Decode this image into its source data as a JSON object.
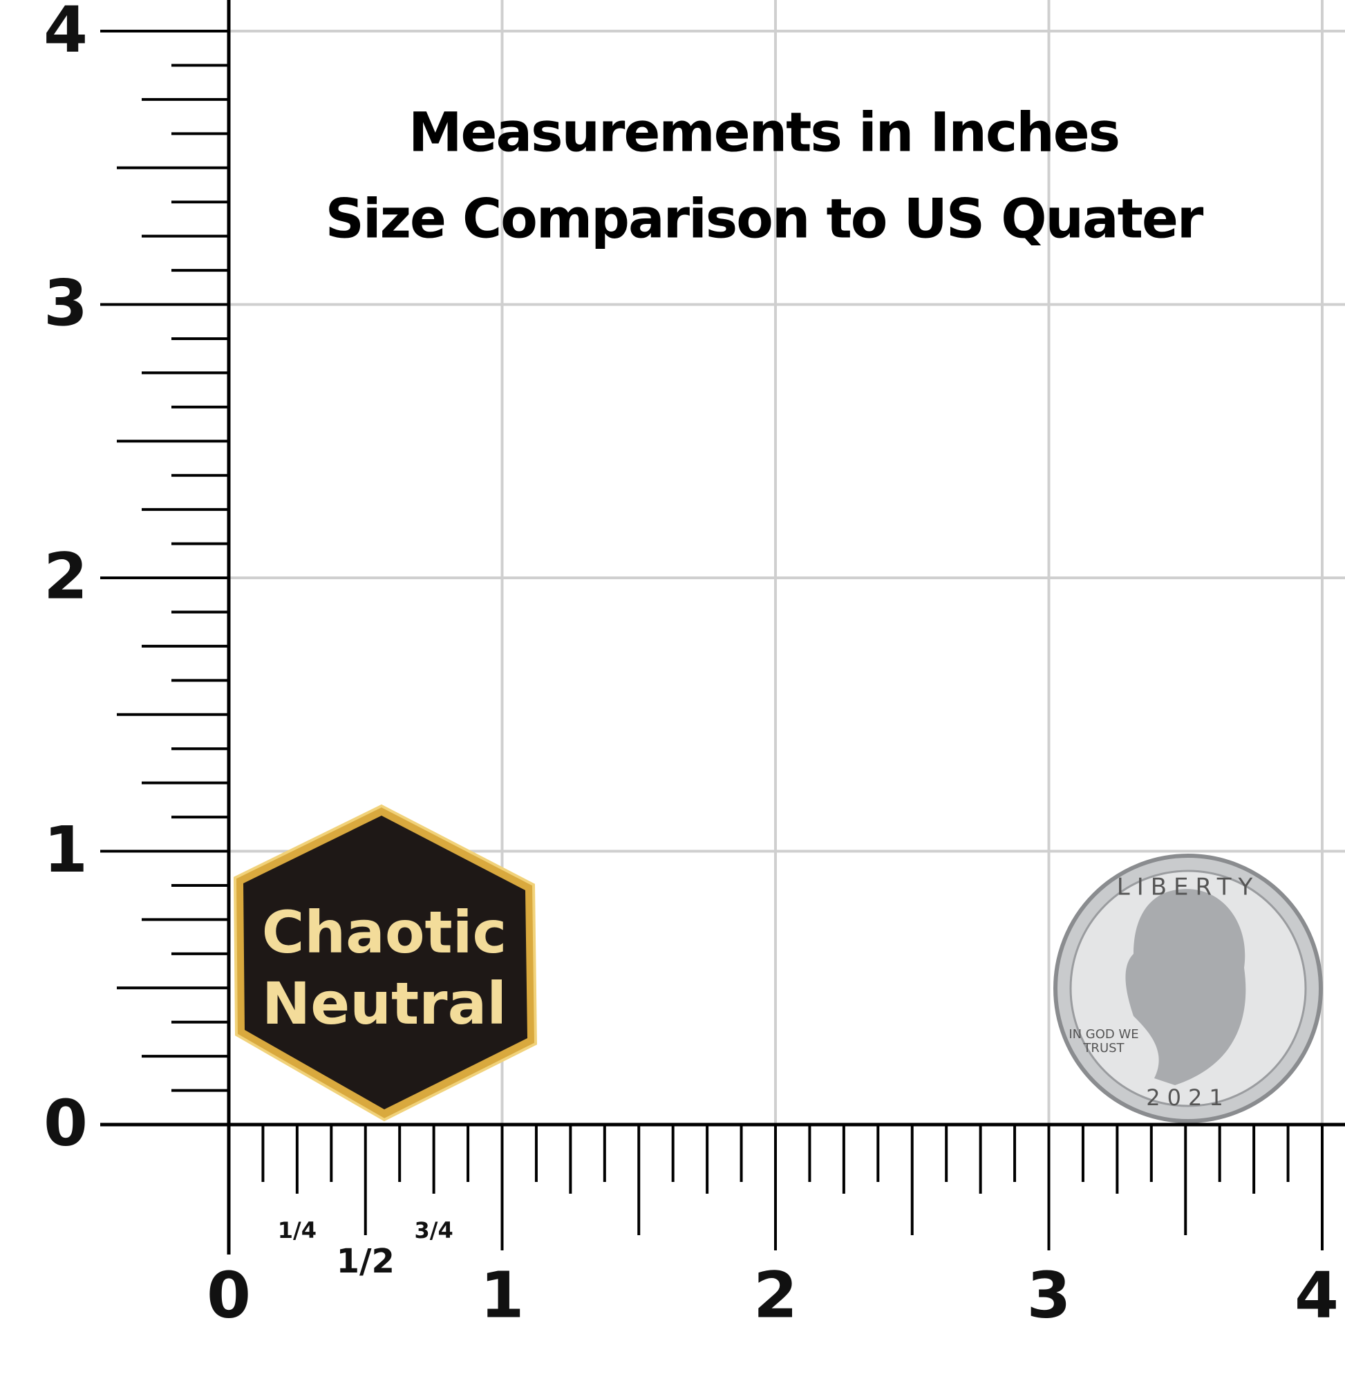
{
  "header": {
    "title_lines": [
      "Measurements in Inches",
      "Size Comparison to US Quater"
    ]
  },
  "ruler": {
    "y_labels": [
      "0",
      "1",
      "2",
      "3",
      "4"
    ],
    "x_labels": [
      "0",
      "1",
      "2",
      "3",
      "4"
    ],
    "fractions": [
      "1/4",
      "1/2",
      "3/4"
    ]
  },
  "pin": {
    "lines": [
      "Chaotic",
      "Neutral"
    ]
  },
  "coin": {
    "top": "LIBERTY",
    "motto_lines": [
      "IN GOD WE",
      "TRUST"
    ],
    "year": "2021"
  }
}
